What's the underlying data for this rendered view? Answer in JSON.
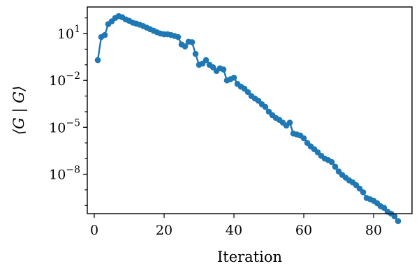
{
  "chart_data": {
    "type": "line",
    "xlabel": "Iteration",
    "ylabel": "⟨G | G⟩",
    "yscale": "log",
    "xlim": [
      -2,
      91
    ],
    "ylim": [
      3e-11,
      500.0
    ],
    "xticks": [
      0,
      20,
      40,
      60,
      80
    ],
    "xtick_labels": [
      "0",
      "20",
      "40",
      "60",
      "80"
    ],
    "yticks": [
      {
        "value": 10,
        "base": "10",
        "exp": "1"
      },
      {
        "value": 0.01,
        "base": "10",
        "exp": "−2"
      },
      {
        "value": 1e-05,
        "base": "10",
        "exp": "−5"
      },
      {
        "value": 1e-08,
        "base": "10",
        "exp": "−8"
      }
    ],
    "grid": false,
    "color": "#1f77b4",
    "series": [
      {
        "marker": "circle",
        "x": [
          1,
          2,
          3,
          4,
          5,
          6,
          7,
          8,
          9,
          10,
          11,
          12,
          13,
          14,
          15,
          16,
          17,
          18,
          19,
          20,
          21,
          22,
          23,
          24,
          25,
          26,
          27,
          28,
          29,
          30,
          31,
          32,
          33,
          34,
          35,
          36,
          37,
          38,
          39,
          40,
          41,
          42,
          43,
          44,
          45,
          46,
          47,
          48,
          49,
          50,
          51,
          52,
          53,
          54,
          55,
          56,
          57,
          58,
          59,
          60,
          61,
          62,
          63,
          64,
          65,
          66,
          67,
          68,
          69,
          70,
          71,
          72,
          73,
          74,
          75,
          76,
          77,
          78,
          79,
          80,
          81,
          82,
          83,
          84,
          85,
          86,
          87
        ],
        "y": [
          0.2,
          6,
          8,
          40,
          60,
          100,
          130,
          110,
          80,
          65,
          50,
          43,
          37,
          30,
          24,
          19,
          15,
          12,
          10,
          9,
          9,
          8,
          7,
          6,
          2,
          1.5,
          3,
          2.8,
          0.5,
          0.1,
          0.12,
          0.2,
          0.1,
          0.07,
          0.04,
          0.06,
          0.05,
          0.01,
          0.012,
          0.015,
          0.006,
          0.004,
          0.003,
          0.0018,
          0.001,
          0.0007,
          0.0005,
          0.0003,
          0.0002,
          0.0001,
          6e-05,
          4e-05,
          3e-05,
          2e-05,
          1.3e-05,
          2e-05,
          4e-06,
          3.5e-06,
          3e-06,
          2e-06,
          1e-06,
          6e-07,
          4e-07,
          2.5e-07,
          1.5e-07,
          1e-07,
          8e-08,
          6e-08,
          3e-08,
          1.5e-08,
          9e-09,
          6e-09,
          4e-09,
          3e-09,
          2e-09,
          1.2e-09,
          7e-10,
          3e-10,
          2.5e-10,
          2e-10,
          1.4e-10,
          9e-11,
          7e-11,
          4e-11,
          3e-11,
          2e-11,
          1e-11
        ]
      }
    ]
  }
}
